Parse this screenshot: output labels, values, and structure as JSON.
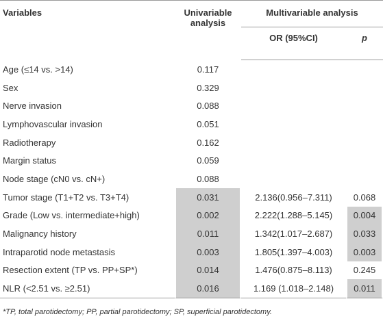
{
  "table": {
    "headers": {
      "variables": "Variables",
      "univariable": "Univariable analysis",
      "multivariable": "Multivariable analysis",
      "or": "OR (95%CI)",
      "p": "p"
    },
    "rows": [
      {
        "variable": "Age (≤14 vs. >14)",
        "univariable": "0.117"
      },
      {
        "variable": "Sex",
        "univariable": "0.329"
      },
      {
        "variable": "Nerve invasion",
        "univariable": "0.088"
      },
      {
        "variable": "Lymphovascular invasion",
        "univariable": "0.051"
      },
      {
        "variable": "Radiotherapy",
        "univariable": "0.162"
      },
      {
        "variable": "Margin status",
        "univariable": "0.059"
      },
      {
        "variable": "Node stage (cN0 vs. cN+)",
        "univariable": "0.088"
      },
      {
        "variable": "Tumor stage (T1+T2 vs. T3+T4)",
        "univariable": "0.031",
        "or": "2.136(0.956–7.311)",
        "p": "0.068"
      },
      {
        "variable": "Grade (Low vs. intermediate+high)",
        "univariable": "0.002",
        "or": "2.222(1.288–5.145)",
        "p": "0.004"
      },
      {
        "variable": "Malignancy history",
        "univariable": "0.011",
        "or": "1.342(1.017–2.687)",
        "p": "0.033"
      },
      {
        "variable": "Intraparotid node metastasis",
        "univariable": "0.003",
        "or": "1.805(1.397–4.003)",
        "p": "0.003"
      },
      {
        "variable": "Resection extent (TP vs. PP+SP*)",
        "univariable": "0.014",
        "or": "1.476(0.875–8.113)",
        "p": "0.245"
      },
      {
        "variable": "NLR (<2.51 vs. ≥2.51)",
        "univariable": "0.016",
        "or": "1.169 (1.018–2.148)",
        "p": "0.011"
      }
    ],
    "footnote": "*TP, total parotidectomy; PP, partial parotidectomy; SP, superficial parotidectomy."
  }
}
